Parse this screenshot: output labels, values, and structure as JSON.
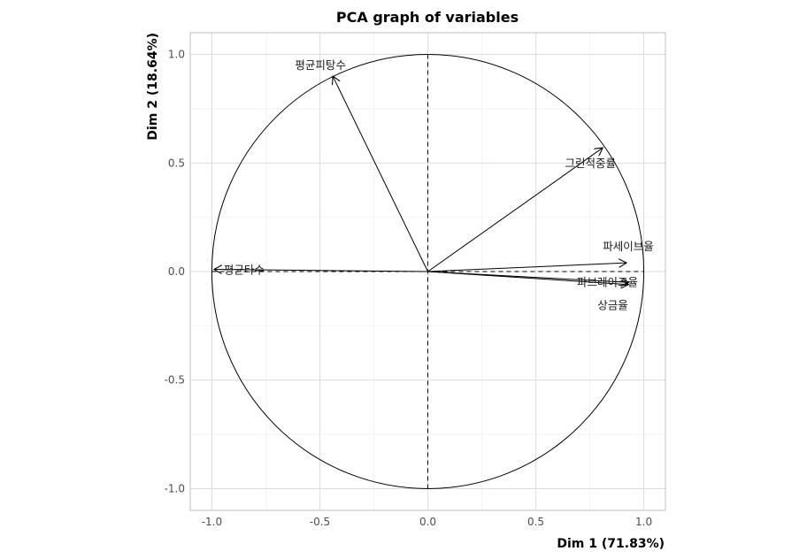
{
  "chart_data": {
    "type": "scatter",
    "subtype": "pca-correlation-circle",
    "title": "PCA graph of variables",
    "xlabel": "Dim 1 (71.83%)",
    "ylabel": "Dim 2 (18.64%)",
    "xlim": [
      -1.1,
      1.1
    ],
    "ylim": [
      -1.1,
      1.1
    ],
    "x_ticks": [
      -1.0,
      -0.5,
      0.0,
      0.5,
      1.0
    ],
    "y_ticks": [
      -1.0,
      -0.5,
      0.0,
      0.5,
      1.0
    ],
    "x_tick_labels": [
      "-1.0",
      "-0.5",
      "0.0",
      "0.5",
      "1.0"
    ],
    "y_tick_labels": [
      "-1.0",
      "-0.5",
      "0.0",
      "0.5",
      "1.0"
    ],
    "grid": true,
    "unit_circle": true,
    "variables": [
      {
        "name": "평균피탕수",
        "x": -0.44,
        "y": 0.9
      },
      {
        "name": "그린적중률",
        "x": 0.81,
        "y": 0.57
      },
      {
        "name": "파세이브율",
        "x": 0.92,
        "y": 0.04
      },
      {
        "name": "파브레이크율",
        "x": 0.93,
        "y": -0.05
      },
      {
        "name": "상금율",
        "x": 0.93,
        "y": -0.06
      },
      {
        "name": "평균타수",
        "x": -0.99,
        "y": 0.01
      }
    ],
    "colors": {
      "arrow": "#000000",
      "grid": "#dcdcdc",
      "border": "#bfbfbf"
    }
  }
}
